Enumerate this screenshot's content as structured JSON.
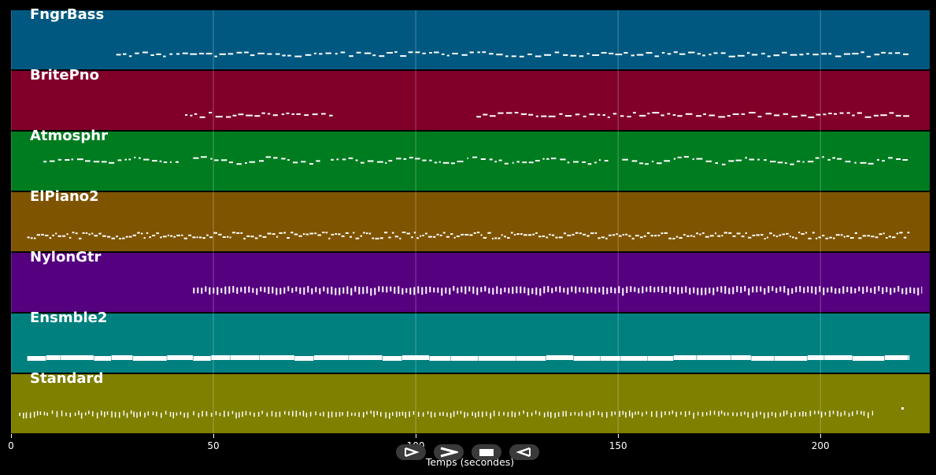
{
  "tracks": [
    {
      "name": "FngrBass",
      "color": "#005880"
    },
    {
      "name": "BritePno",
      "color": "#80002a"
    },
    {
      "name": "Atmosphr",
      "color": "#007c20"
    },
    {
      "name": "ElPiano2",
      "color": "#7f5400"
    },
    {
      "name": "NylonGtr",
      "color": "#55007f"
    },
    {
      "name": "Ensmble2",
      "color": "#00807f"
    },
    {
      "name": "Standard",
      "color": "#7f7f00"
    }
  ],
  "axis": {
    "label": "Temps (secondes)",
    "ticks": [
      "0",
      "50",
      "100",
      "150",
      "200"
    ],
    "range": [
      0,
      227
    ]
  },
  "controls": [
    {
      "name": "play-step-button",
      "icon": "play-icon"
    },
    {
      "name": "fast-forward-button",
      "icon": "fast-forward-icon"
    },
    {
      "name": "stop-button",
      "icon": "stop-icon"
    },
    {
      "name": "rewind-button",
      "icon": "rewind-icon"
    }
  ],
  "chart_data": {
    "type": "piano-roll",
    "xlabel": "Temps (secondes)",
    "xlim": [
      0,
      227
    ],
    "xticks": [
      0,
      50,
      100,
      150,
      200
    ],
    "grid": true,
    "series": [
      {
        "name": "FngrBass",
        "segments": [
          [
            26,
            222
          ]
        ],
        "style": "sparse-dashes"
      },
      {
        "name": "BritePno",
        "segments": [
          [
            43,
            80
          ],
          [
            115,
            222
          ]
        ],
        "style": "sparse-dashes"
      },
      {
        "name": "Atmosphr",
        "segments": [
          [
            8,
            42
          ],
          [
            45,
            77
          ],
          [
            79,
            113
          ],
          [
            114,
            148
          ],
          [
            151,
            185
          ],
          [
            186,
            222
          ]
        ],
        "style": "wavy-line"
      },
      {
        "name": "ElPiano2",
        "segments": [
          [
            4,
            222
          ]
        ],
        "style": "dense-dashes"
      },
      {
        "name": "NylonGtr",
        "segments": [
          [
            45,
            225
          ]
        ],
        "style": "vertical-strokes"
      },
      {
        "name": "Ensmble2",
        "segments": [
          [
            4,
            222
          ]
        ],
        "style": "solid-thick"
      },
      {
        "name": "Standard",
        "segments": [
          [
            2,
            44
          ],
          [
            45,
            213
          ]
        ],
        "style": "dots",
        "extra_points": [
          220
        ]
      }
    ]
  }
}
